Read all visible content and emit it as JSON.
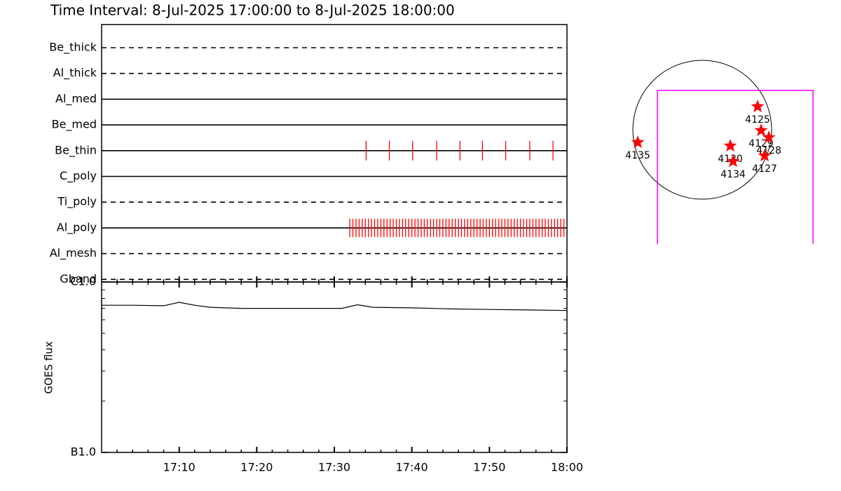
{
  "title": "Time Interval:  8-Jul-2025 17:00:00 to  8-Jul-2025 18:00:00",
  "filter_panel": {
    "event_color": "#ff0000",
    "filters": [
      {
        "name": "Be_thick",
        "line": "dashed",
        "events": []
      },
      {
        "name": "Al_thick",
        "line": "dashed",
        "events": []
      },
      {
        "name": "Al_med",
        "line": "solid",
        "events": []
      },
      {
        "name": "Be_med",
        "line": "solid",
        "events": []
      },
      {
        "name": "Be_thin",
        "line": "solid",
        "events": [
          34.1,
          37.1,
          40.1,
          43.2,
          46.2,
          49.1,
          52.1,
          55.2,
          58.2
        ]
      },
      {
        "name": "C_poly",
        "line": "solid",
        "events": []
      },
      {
        "name": "Ti_poly",
        "line": "dashed",
        "events": []
      },
      {
        "name": "Al_poly",
        "line": "solid",
        "events": [
          32.0,
          32.4,
          32.8,
          33.2,
          33.6,
          34.0,
          34.4,
          34.8,
          35.2,
          35.6,
          36.0,
          36.4,
          36.8,
          37.2,
          37.6,
          38.0,
          38.4,
          38.8,
          39.2,
          39.6,
          40.0,
          40.4,
          40.8,
          41.2,
          41.6,
          42.0,
          42.4,
          42.8,
          43.2,
          43.6,
          44.0,
          44.4,
          44.8,
          45.2,
          45.6,
          46.0,
          46.4,
          46.8,
          47.2,
          47.6,
          48.0,
          48.4,
          48.8,
          49.2,
          49.6,
          50.0,
          50.4,
          50.8,
          51.2,
          51.6,
          52.0,
          52.4,
          52.8,
          53.2,
          53.6,
          54.0,
          54.4,
          54.8,
          55.2,
          55.6,
          56.0,
          56.4,
          56.8,
          57.2,
          57.6,
          58.0,
          58.4,
          58.8,
          59.2,
          59.6
        ]
      },
      {
        "name": "Al_mesh",
        "line": "dashed",
        "events": []
      },
      {
        "name": "Gband",
        "line": "dashed",
        "events": []
      }
    ]
  },
  "chart_data": {
    "type": "line",
    "ylabel": "GOES flux",
    "xlim": [
      0,
      60
    ],
    "xticks": [
      {
        "value": 10,
        "label": "17:10"
      },
      {
        "value": 20,
        "label": "17:20"
      },
      {
        "value": 30,
        "label": "17:30"
      },
      {
        "value": 40,
        "label": "17:40"
      },
      {
        "value": 50,
        "label": "17:50"
      },
      {
        "value": 60,
        "label": "18:00"
      }
    ],
    "xminorticks": [
      2,
      4,
      6,
      8,
      12,
      14,
      16,
      18,
      22,
      24,
      26,
      28,
      32,
      34,
      36,
      38,
      42,
      44,
      46,
      48,
      52,
      54,
      56,
      58
    ],
    "ylog": true,
    "ylim": [
      1e-07,
      1e-06
    ],
    "yticks": [
      {
        "value": 1e-07,
        "label": "B1.0"
      },
      {
        "value": 1e-06,
        "label": "C1.0"
      }
    ],
    "yminorticks": [
      2e-07,
      3e-07,
      4e-07,
      5e-07,
      6e-07,
      7e-07,
      8e-07,
      9e-07
    ],
    "series": [
      {
        "color": "#000000",
        "x": [
          0,
          4,
          8,
          10,
          12,
          14,
          18,
          25,
          31,
          33,
          35,
          40,
          45,
          50,
          55,
          60
        ],
        "values": [
          7.3e-07,
          7.3e-07,
          7.25e-07,
          7.6e-07,
          7.3e-07,
          7.1e-07,
          7e-07,
          7e-07,
          7e-07,
          7.35e-07,
          7.1e-07,
          7.05e-07,
          6.95e-07,
          6.9e-07,
          6.85e-07,
          6.8e-07
        ]
      }
    ]
  },
  "sun_map": {
    "solar_radius": 950,
    "fov": {
      "color": "#ff00ff",
      "xlim": [
        -614,
        1517
      ],
      "ylim": [
        -1565,
        538
      ]
    },
    "region_color": "#ff0000",
    "regions": [
      {
        "label": "4125",
        "x": 758,
        "y": 317
      },
      {
        "label": "4129",
        "x": 806,
        "y": -10
      },
      {
        "label": "4128",
        "x": 912,
        "y": -106
      },
      {
        "label": "4130",
        "x": 384,
        "y": -221
      },
      {
        "label": "4134",
        "x": 422,
        "y": -432
      },
      {
        "label": "4127",
        "x": 854,
        "y": -355
      },
      {
        "label": "4135",
        "x": -883,
        "y": -173
      }
    ]
  }
}
